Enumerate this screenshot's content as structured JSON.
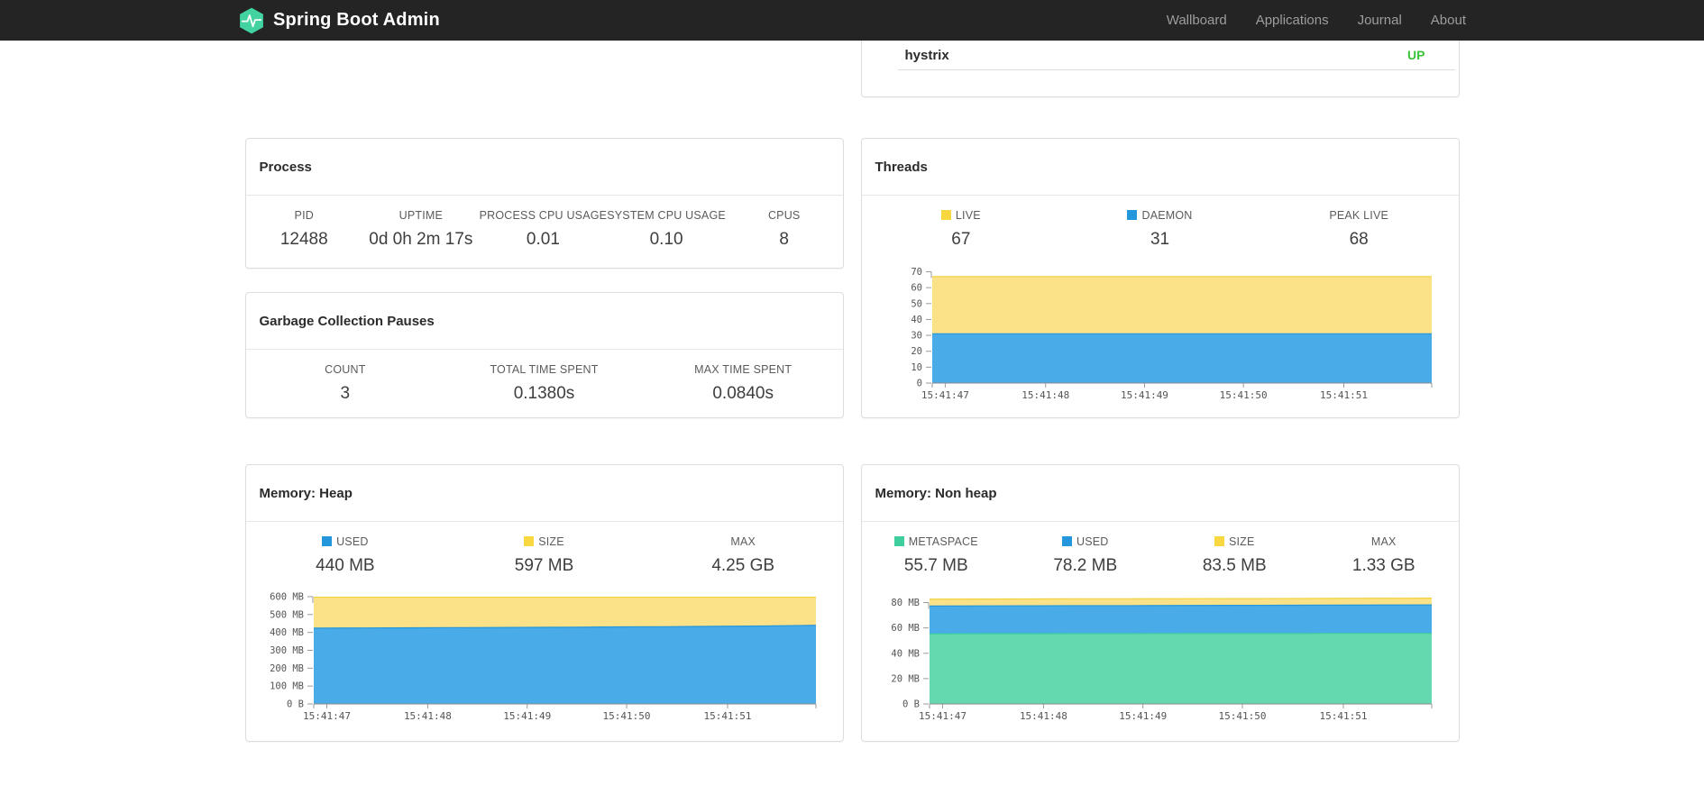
{
  "navbar": {
    "brand": "Spring Boot Admin",
    "items": [
      {
        "label": "Wallboard"
      },
      {
        "label": "Applications"
      },
      {
        "label": "Journal"
      },
      {
        "label": "About"
      }
    ]
  },
  "health_card": {
    "service": "hystrix",
    "status": "UP",
    "status_color": "#3bc43b"
  },
  "process": {
    "title": "Process",
    "stats": [
      {
        "label": "PID",
        "value": "12488"
      },
      {
        "label": "UPTIME",
        "value": "0d 0h 2m 17s"
      },
      {
        "label": "PROCESS CPU USAGE",
        "value": "0.01"
      },
      {
        "label": "SYSTEM CPU USAGE",
        "value": "0.10"
      },
      {
        "label": "CPUS",
        "value": "8"
      }
    ]
  },
  "gc": {
    "title": "Garbage Collection Pauses",
    "stats": [
      {
        "label": "COUNT",
        "value": "3"
      },
      {
        "label": "TOTAL TIME SPENT",
        "value": "0.1380s"
      },
      {
        "label": "MAX TIME SPENT",
        "value": "0.0840s"
      }
    ]
  },
  "threads": {
    "title": "Threads",
    "stats": [
      {
        "label": "LIVE",
        "value": "67",
        "color": "#f8d740"
      },
      {
        "label": "DAEMON",
        "value": "31",
        "color": "#2496dc"
      },
      {
        "label": "PEAK LIVE",
        "value": "68",
        "color": null
      }
    ]
  },
  "memory_heap": {
    "title": "Memory: Heap",
    "stats": [
      {
        "label": "USED",
        "value": "440 MB",
        "color": "#2496dc"
      },
      {
        "label": "SIZE",
        "value": "597 MB",
        "color": "#f8d740"
      },
      {
        "label": "MAX",
        "value": "4.25 GB",
        "color": null
      }
    ]
  },
  "memory_nonheap": {
    "title": "Memory: Non heap",
    "stats": [
      {
        "label": "METASPACE",
        "value": "55.7 MB",
        "color": "#3fcf9e"
      },
      {
        "label": "USED",
        "value": "78.2 MB",
        "color": "#2496dc"
      },
      {
        "label": "SIZE",
        "value": "83.5 MB",
        "color": "#f8d740"
      },
      {
        "label": "MAX",
        "value": "1.33 GB",
        "color": null
      }
    ]
  },
  "chart_data": {
    "threads": {
      "type": "area",
      "title": "Threads",
      "ylim": [
        0,
        72
      ],
      "grid": false,
      "legend_position": "above",
      "x_labels": [
        "15:41:47",
        "15:41:48",
        "15:41:49",
        "15:41:50",
        "15:41:51"
      ],
      "x_ticks": [
        {
          "f": 0.0,
          "label": ""
        },
        {
          "f": 0.026,
          "label": "15:41:47"
        },
        {
          "f": 0.227,
          "label": "15:41:48"
        },
        {
          "f": 0.425,
          "label": "15:41:49"
        },
        {
          "f": 0.623,
          "label": "15:41:50"
        },
        {
          "f": 0.824,
          "label": "15:41:51"
        },
        {
          "f": 1.0,
          "label": ""
        }
      ],
      "y_ticks": [
        {
          "v": 0,
          "label": "0"
        },
        {
          "v": 10,
          "label": "10"
        },
        {
          "v": 20,
          "label": "20"
        },
        {
          "v": 30,
          "label": "30"
        },
        {
          "v": 40,
          "label": "40"
        },
        {
          "v": 50,
          "label": "50"
        },
        {
          "v": 60,
          "label": "60"
        },
        {
          "v": 70,
          "label": "70"
        }
      ],
      "series": [
        {
          "name": "LIVE",
          "color": "#f1d23c",
          "fill": "#fbe288",
          "values": [
            67,
            67,
            67,
            67,
            67,
            67,
            67,
            67,
            67,
            67,
            67
          ]
        },
        {
          "name": "DAEMON",
          "color": "#2496dc",
          "fill": "#49abe8",
          "values": [
            31,
            31,
            31,
            31,
            31,
            31,
            31,
            31,
            31,
            31,
            31
          ]
        }
      ]
    },
    "heap": {
      "type": "area",
      "title": "Memory: Heap",
      "ylim": [
        0,
        620
      ],
      "unit": "MB",
      "grid": false,
      "legend_position": "above",
      "x_labels": [
        "15:41:47",
        "15:41:48",
        "15:41:49",
        "15:41:50",
        "15:41:51"
      ],
      "x_ticks": [
        {
          "f": 0.0,
          "label": ""
        },
        {
          "f": 0.026,
          "label": "15:41:47"
        },
        {
          "f": 0.227,
          "label": "15:41:48"
        },
        {
          "f": 0.425,
          "label": "15:41:49"
        },
        {
          "f": 0.623,
          "label": "15:41:50"
        },
        {
          "f": 0.824,
          "label": "15:41:51"
        },
        {
          "f": 1.0,
          "label": ""
        }
      ],
      "y_ticks": [
        {
          "v": 0,
          "label": "0 B"
        },
        {
          "v": 100,
          "label": "100 MB"
        },
        {
          "v": 200,
          "label": "200 MB"
        },
        {
          "v": 300,
          "label": "300 MB"
        },
        {
          "v": 400,
          "label": "400 MB"
        },
        {
          "v": 500,
          "label": "500 MB"
        },
        {
          "v": 600,
          "label": "600 MB"
        }
      ],
      "series": [
        {
          "name": "SIZE",
          "color": "#f1d23c",
          "fill": "#fbe288",
          "values": [
            597,
            597,
            597,
            597,
            597,
            597,
            597,
            597,
            597,
            597,
            597
          ]
        },
        {
          "name": "USED",
          "color": "#2496dc",
          "fill": "#49abe8",
          "values": [
            424,
            425,
            426,
            427,
            428,
            429,
            431,
            432,
            434,
            436,
            440
          ]
        }
      ]
    },
    "nonheap": {
      "type": "area",
      "title": "Memory: Non heap",
      "ylim": [
        0,
        87.5
      ],
      "unit": "MB",
      "grid": false,
      "legend_position": "above",
      "x_labels": [
        "15:41:47",
        "15:41:48",
        "15:41:49",
        "15:41:50",
        "15:41:51"
      ],
      "x_ticks": [
        {
          "f": 0.0,
          "label": ""
        },
        {
          "f": 0.026,
          "label": "15:41:47"
        },
        {
          "f": 0.227,
          "label": "15:41:48"
        },
        {
          "f": 0.425,
          "label": "15:41:49"
        },
        {
          "f": 0.623,
          "label": "15:41:50"
        },
        {
          "f": 0.824,
          "label": "15:41:51"
        },
        {
          "f": 1.0,
          "label": ""
        }
      ],
      "y_ticks": [
        {
          "v": 0,
          "label": "0 B"
        },
        {
          "v": 20,
          "label": "20 MB"
        },
        {
          "v": 40,
          "label": "40 MB"
        },
        {
          "v": 60,
          "label": "60 MB"
        },
        {
          "v": 80,
          "label": "80 MB"
        }
      ],
      "series": [
        {
          "name": "SIZE",
          "color": "#f1d23c",
          "fill": "#fbe288",
          "values": [
            82.7,
            82.8,
            82.9,
            83.0,
            83.0,
            83.1,
            83.2,
            83.2,
            83.3,
            83.4,
            83.5
          ]
        },
        {
          "name": "USED",
          "color": "#2496dc",
          "fill": "#49abe8",
          "values": [
            77.3,
            77.4,
            77.5,
            77.6,
            77.6,
            77.7,
            77.8,
            77.9,
            78.0,
            78.1,
            78.2
          ]
        },
        {
          "name": "METASPACE",
          "color": "#3fcf9e",
          "fill": "#64d8ae",
          "values": [
            55.3,
            55.4,
            55.4,
            55.5,
            55.5,
            55.6,
            55.6,
            55.6,
            55.7,
            55.7,
            55.7
          ]
        }
      ]
    }
  }
}
